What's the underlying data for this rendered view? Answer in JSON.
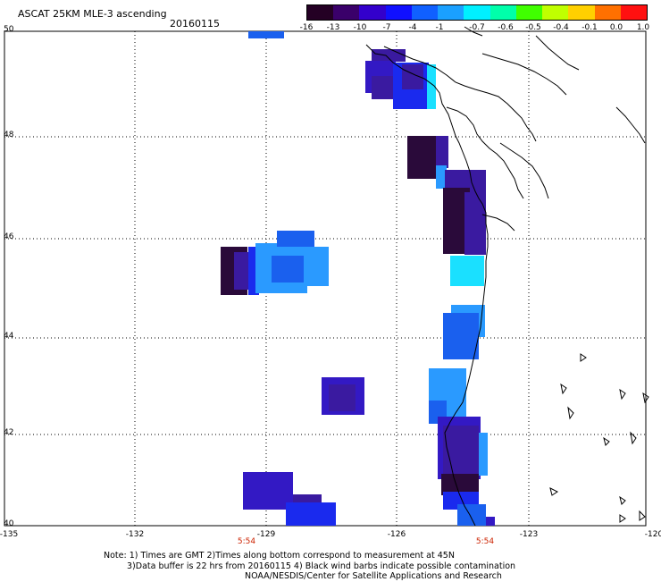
{
  "header": {
    "title": "ASCAT 25KM MLE-3 ascending",
    "date": "20160115"
  },
  "colorbar": {
    "labels": [
      "-16",
      "-13",
      "-10",
      "-7",
      "-4",
      "-1",
      "-0.7",
      "-0.6",
      "-0.5",
      "-0.4",
      "-0.1",
      "0.0",
      "1.0"
    ],
    "colors": [
      "#240024",
      "#3a006a",
      "#3300cc",
      "#1010ff",
      "#1060ff",
      "#1aa0ff",
      "#00f0ff",
      "#00ffaa",
      "#40ff00",
      "#c0ff00",
      "#ffd000",
      "#ff7000",
      "#ff1010"
    ]
  },
  "map": {
    "lat_labels": [
      "50",
      "48",
      "46",
      "44",
      "42",
      "40"
    ],
    "lon_labels": [
      "-135",
      "-132",
      "-129",
      "-126",
      "-123",
      "-120"
    ],
    "time_labels": [
      "5:54",
      "5:54"
    ],
    "colors": {
      "dark": "#2a0a3a",
      "purple": "#3a1aa0",
      "indigo": "#3319c4",
      "blue": "#1a2aee",
      "mid_blue": "#1a60ee",
      "light_blue": "#2a9aff",
      "cyan": "#1ae0ff",
      "coast": "#000000",
      "grid": "#000000"
    }
  },
  "footer": {
    "note_line1": "Note: 1) Times are GMT 2)Times along bottom correspond to measurement at 45N",
    "note_line2": "3)Data buffer is 22 hrs from 20160115 4) Black wind barbs indicate possible contamination",
    "note_line3": "NOAA/NESDIS/Center for Satellite Applications and Research"
  }
}
